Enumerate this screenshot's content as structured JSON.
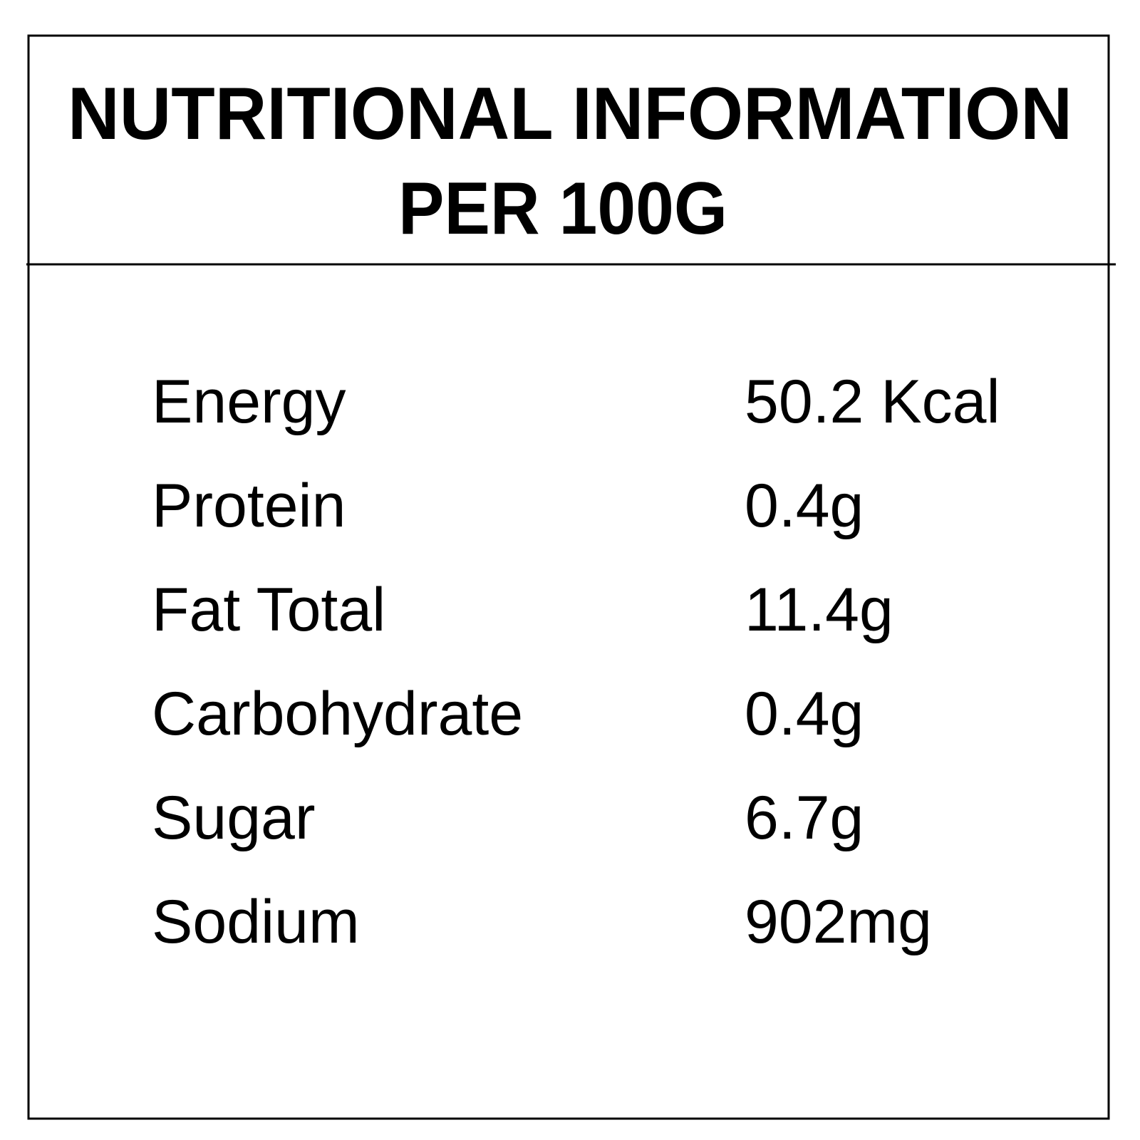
{
  "header": {
    "title_lines": [
      "NUTRITIONAL INFORMATION",
      "PER 100G"
    ]
  },
  "table": {
    "rows": [
      [
        "Energy",
        "50.2 Kcal"
      ],
      [
        "Protein",
        "0.4g"
      ],
      [
        "Fat Total",
        "11.4g"
      ],
      [
        "Carbohydrate",
        "0.4g"
      ],
      [
        "Sugar",
        "6.7g"
      ],
      [
        "Sodium",
        "902mg"
      ]
    ]
  }
}
